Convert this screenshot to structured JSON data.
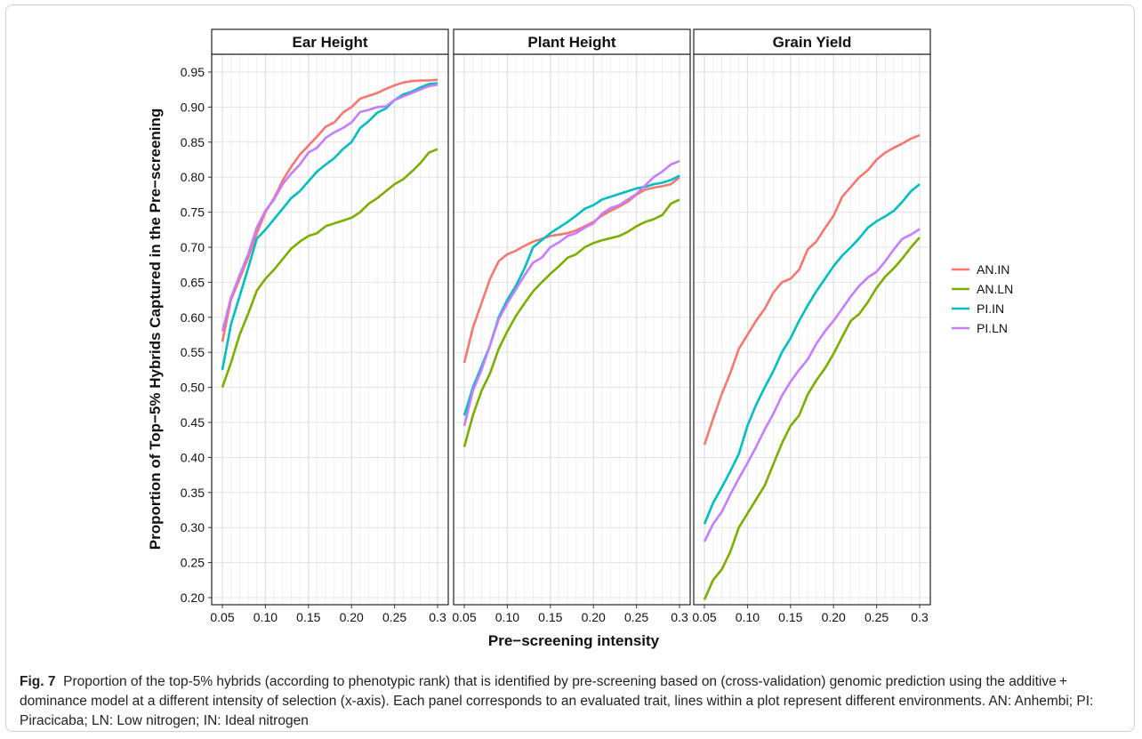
{
  "chart_data": {
    "type": "line",
    "facet_titles": [
      "Ear Height",
      "Plant Height",
      "Grain Yield"
    ],
    "xlabel": "Pre−screening intensity",
    "ylabel": "Proportion of Top−5% Hybrids Captured in the Pre−screening",
    "xlim": [
      0.05,
      0.3
    ],
    "ylim": [
      0.2,
      0.95
    ],
    "x_ticks": [
      0.05,
      0.1,
      0.15,
      0.2,
      0.25,
      0.3
    ],
    "x_tick_labels": [
      "0.05",
      "0.10",
      "0.15",
      "0.20",
      "0.25",
      "0.3"
    ],
    "y_ticks": [
      0.2,
      0.25,
      0.3,
      0.35,
      0.4,
      0.45,
      0.5,
      0.55,
      0.6,
      0.65,
      0.7,
      0.75,
      0.8,
      0.85,
      0.9,
      0.95
    ],
    "y_tick_labels": [
      "0.20",
      "0.25",
      "0.30",
      "0.35",
      "0.40",
      "0.45",
      "0.50",
      "0.55",
      "0.60",
      "0.65",
      "0.70",
      "0.75",
      "0.80",
      "0.85",
      "0.90",
      "0.95"
    ],
    "grid": true,
    "legend_position": "right",
    "x": [
      0.05,
      0.06,
      0.07,
      0.08,
      0.09,
      0.1,
      0.11,
      0.12,
      0.13,
      0.14,
      0.15,
      0.16,
      0.17,
      0.18,
      0.19,
      0.2,
      0.21,
      0.22,
      0.23,
      0.24,
      0.25,
      0.26,
      0.27,
      0.28,
      0.29,
      0.3
    ],
    "series": [
      {
        "name": "AN.IN",
        "color": "#F8766D"
      },
      {
        "name": "AN.LN",
        "color": "#7CAE00"
      },
      {
        "name": "PI.IN",
        "color": "#00BFC4"
      },
      {
        "name": "PI.LN",
        "color": "#C77CFF"
      }
    ],
    "panels": [
      {
        "title": "Ear Height",
        "values": {
          "AN.IN": [
            0.565,
            0.625,
            0.655,
            0.685,
            0.72,
            0.75,
            0.77,
            0.795,
            0.815,
            0.832,
            0.845,
            0.858,
            0.872,
            0.878,
            0.892,
            0.9,
            0.912,
            0.916,
            0.92,
            0.926,
            0.931,
            0.935,
            0.937,
            0.938,
            0.938,
            0.939
          ],
          "AN.LN": [
            0.5,
            0.535,
            0.575,
            0.605,
            0.638,
            0.655,
            0.668,
            0.683,
            0.698,
            0.708,
            0.716,
            0.72,
            0.73,
            0.734,
            0.738,
            0.742,
            0.75,
            0.762,
            0.77,
            0.78,
            0.79,
            0.797,
            0.808,
            0.82,
            0.835,
            0.84
          ],
          "PI.IN": [
            0.525,
            0.59,
            0.63,
            0.67,
            0.712,
            0.725,
            0.74,
            0.755,
            0.77,
            0.78,
            0.794,
            0.808,
            0.818,
            0.827,
            0.84,
            0.85,
            0.87,
            0.88,
            0.892,
            0.898,
            0.91,
            0.918,
            0.922,
            0.928,
            0.933,
            0.934
          ],
          "PI.LN": [
            0.58,
            0.628,
            0.66,
            0.69,
            0.728,
            0.752,
            0.768,
            0.79,
            0.805,
            0.818,
            0.835,
            0.842,
            0.856,
            0.864,
            0.87,
            0.878,
            0.893,
            0.896,
            0.9,
            0.901,
            0.91,
            0.915,
            0.92,
            0.925,
            0.93,
            0.932
          ]
        }
      },
      {
        "title": "Plant Height",
        "values": {
          "AN.IN": [
            0.535,
            0.585,
            0.62,
            0.655,
            0.68,
            0.69,
            0.695,
            0.702,
            0.708,
            0.712,
            0.716,
            0.718,
            0.72,
            0.724,
            0.73,
            0.736,
            0.745,
            0.752,
            0.758,
            0.765,
            0.775,
            0.782,
            0.785,
            0.787,
            0.79,
            0.8
          ],
          "AN.LN": [
            0.415,
            0.46,
            0.495,
            0.52,
            0.555,
            0.58,
            0.602,
            0.62,
            0.637,
            0.65,
            0.662,
            0.673,
            0.685,
            0.69,
            0.7,
            0.706,
            0.71,
            0.713,
            0.716,
            0.722,
            0.73,
            0.736,
            0.74,
            0.746,
            0.762,
            0.768
          ],
          "PI.IN": [
            0.46,
            0.5,
            0.53,
            0.56,
            0.6,
            0.625,
            0.645,
            0.67,
            0.7,
            0.71,
            0.72,
            0.728,
            0.736,
            0.745,
            0.755,
            0.76,
            0.768,
            0.772,
            0.776,
            0.78,
            0.784,
            0.786,
            0.79,
            0.792,
            0.796,
            0.802
          ],
          "PI.LN": [
            0.445,
            0.495,
            0.525,
            0.56,
            0.597,
            0.62,
            0.64,
            0.66,
            0.678,
            0.685,
            0.7,
            0.707,
            0.716,
            0.72,
            0.728,
            0.734,
            0.748,
            0.756,
            0.76,
            0.768,
            0.776,
            0.788,
            0.8,
            0.808,
            0.818,
            0.823
          ]
        }
      },
      {
        "title": "Grain Yield",
        "values": {
          "AN.IN": [
            0.418,
            0.455,
            0.49,
            0.52,
            0.555,
            0.575,
            0.595,
            0.612,
            0.635,
            0.65,
            0.655,
            0.668,
            0.697,
            0.708,
            0.727,
            0.745,
            0.772,
            0.786,
            0.8,
            0.81,
            0.825,
            0.835,
            0.842,
            0.848,
            0.855,
            0.86
          ],
          "AN.LN": [
            0.197,
            0.225,
            0.24,
            0.265,
            0.3,
            0.32,
            0.34,
            0.36,
            0.39,
            0.42,
            0.445,
            0.46,
            0.49,
            0.51,
            0.527,
            0.548,
            0.572,
            0.595,
            0.605,
            0.622,
            0.642,
            0.658,
            0.67,
            0.684,
            0.7,
            0.714
          ],
          "PI.IN": [
            0.305,
            0.335,
            0.357,
            0.38,
            0.405,
            0.445,
            0.475,
            0.5,
            0.523,
            0.55,
            0.57,
            0.595,
            0.617,
            0.637,
            0.655,
            0.673,
            0.688,
            0.7,
            0.713,
            0.728,
            0.737,
            0.744,
            0.752,
            0.765,
            0.78,
            0.79
          ],
          "PI.LN": [
            0.28,
            0.305,
            0.322,
            0.347,
            0.37,
            0.392,
            0.415,
            0.44,
            0.462,
            0.488,
            0.508,
            0.525,
            0.54,
            0.562,
            0.58,
            0.595,
            0.612,
            0.63,
            0.645,
            0.657,
            0.665,
            0.68,
            0.697,
            0.712,
            0.718,
            0.726
          ]
        }
      }
    ]
  },
  "caption": {
    "label": "Fig. 7",
    "text": "Proportion of the top-5% hybrids (according to phenotypic rank) that is identified by pre-screening based on (cross-validation) genomic prediction using the additive + dominance model at a different intensity of selection (x-axis). Each panel corresponds to an evaluated trait, lines within a plot represent different environments. AN: Anhembi; PI: Piracicaba; LN: Low nitrogen; IN: Ideal nitrogen"
  }
}
